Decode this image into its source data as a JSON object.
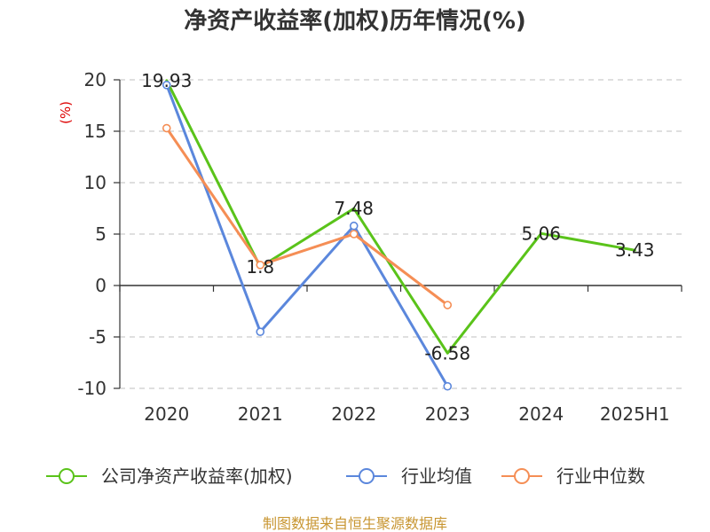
{
  "chart_data": {
    "type": "line",
    "title": "净资产收益率(加权)历年情况(%)",
    "ylabel": "(%)",
    "xlabel": "",
    "ylim": [
      -10,
      20
    ],
    "yticks": [
      -10,
      -5,
      0,
      5,
      10,
      15,
      20
    ],
    "categories": [
      "2020",
      "2021",
      "2022",
      "2023",
      "2024",
      "2025H1"
    ],
    "grid": true,
    "legend_position": "bottom",
    "series": [
      {
        "name": "公司净资产收益率(加权)",
        "color": "#5ac31a",
        "values": [
          19.93,
          1.8,
          7.48,
          -6.58,
          5.06,
          3.43
        ],
        "labels": [
          "19.93",
          "1.8",
          "7.48",
          "-6.58",
          "5.06",
          "3.43"
        ],
        "show_markers": false
      },
      {
        "name": "行业均值",
        "color": "#5b87dc",
        "values": [
          19.5,
          -4.5,
          5.8,
          -9.8,
          null,
          null
        ],
        "show_markers": true
      },
      {
        "name": "行业中位数",
        "color": "#f58e55",
        "values": [
          15.3,
          2.0,
          5.0,
          -1.9,
          null,
          null
        ],
        "show_markers": true
      }
    ]
  },
  "footer": {
    "source": "制图数据来自恒生聚源数据库"
  },
  "colors": {
    "title": "#333333",
    "ylabel": "#dd0000",
    "grid": "#cccccc",
    "axis": "#333333",
    "footer": "#c89632"
  }
}
